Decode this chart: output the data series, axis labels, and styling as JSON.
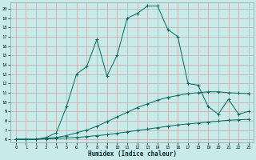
{
  "xlabel": "Humidex (Indice chaleur)",
  "bg_color": "#c8eae8",
  "grid_color": "#c8a8a8",
  "line_color": "#006860",
  "xlim": [
    -0.5,
    23.5
  ],
  "ylim": [
    5.7,
    20.7
  ],
  "xtick_vals": [
    0,
    1,
    2,
    3,
    4,
    5,
    6,
    7,
    8,
    9,
    10,
    11,
    12,
    13,
    14,
    15,
    16,
    17,
    18,
    19,
    20,
    21,
    22,
    23
  ],
  "ytick_vals": [
    6,
    7,
    8,
    9,
    10,
    11,
    12,
    13,
    14,
    15,
    16,
    17,
    18,
    19,
    20
  ],
  "s1_x": [
    0,
    1,
    2,
    3,
    4,
    5,
    6,
    7,
    8,
    9,
    10,
    11,
    12,
    13,
    14,
    15,
    16,
    17,
    18,
    19,
    20,
    21,
    22,
    23
  ],
  "s1_y": [
    6.0,
    6.0,
    6.0,
    6.05,
    6.1,
    6.15,
    6.2,
    6.3,
    6.4,
    6.5,
    6.65,
    6.8,
    6.95,
    7.1,
    7.25,
    7.4,
    7.55,
    7.65,
    7.75,
    7.85,
    7.95,
    8.05,
    8.1,
    8.15
  ],
  "s2_x": [
    0,
    1,
    2,
    3,
    4,
    5,
    6,
    7,
    8,
    9,
    10,
    11,
    12,
    13,
    14,
    15,
    16,
    17,
    18,
    19,
    20,
    21,
    22,
    23
  ],
  "s2_y": [
    6.0,
    6.0,
    6.0,
    6.1,
    6.2,
    6.4,
    6.7,
    7.0,
    7.4,
    7.9,
    8.4,
    8.9,
    9.4,
    9.8,
    10.2,
    10.5,
    10.7,
    10.9,
    11.0,
    11.1,
    11.1,
    11.0,
    10.95,
    10.9
  ],
  "s3_x": [
    0,
    1,
    2,
    3,
    4,
    5,
    6,
    7,
    8,
    9,
    10,
    11,
    12,
    13,
    14,
    15,
    16,
    17,
    18,
    19,
    20,
    21,
    22,
    23
  ],
  "s3_y": [
    6.0,
    6.0,
    6.0,
    6.2,
    6.7,
    9.5,
    13.0,
    13.8,
    16.7,
    12.8,
    15.0,
    19.0,
    19.5,
    20.3,
    20.3,
    17.8,
    17.0,
    12.0,
    11.8,
    9.5,
    8.7,
    10.3,
    8.7,
    9.0
  ]
}
